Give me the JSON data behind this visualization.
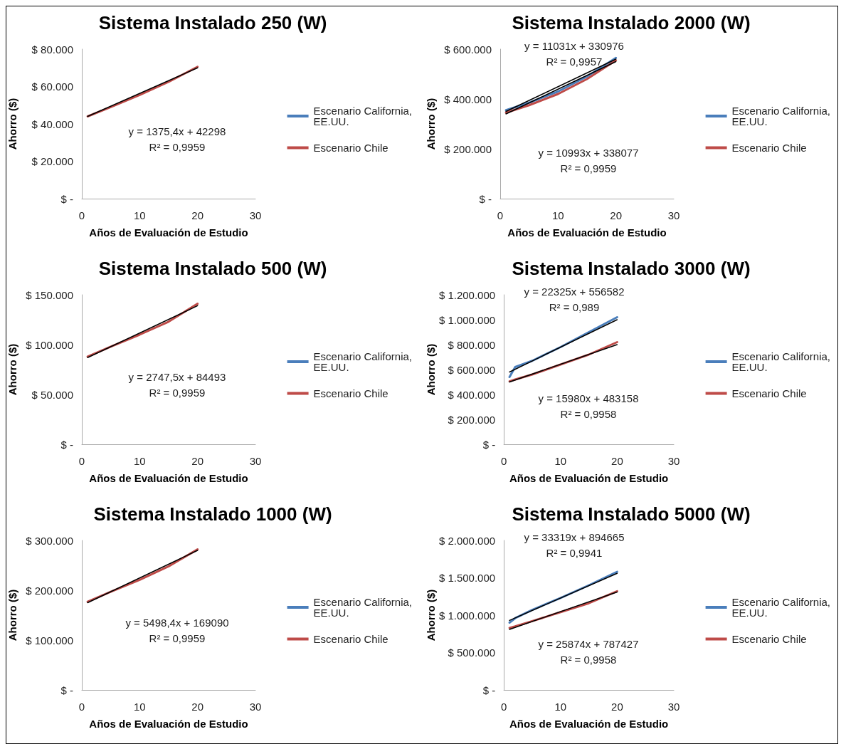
{
  "chart_data": [
    {
      "type": "line",
      "title": "Sistema Instalado 250 (W)",
      "xlabel": "Años de Evaluación de Estudio",
      "ylabel": "Ahorro ($)",
      "xlim": [
        0,
        30
      ],
      "xticks": [
        0,
        10,
        20,
        30
      ],
      "ylim": [
        0,
        80000
      ],
      "yticks": [
        {
          "value": 0,
          "label": "$ -"
        },
        {
          "value": 20000,
          "label": "$ 20.000"
        },
        {
          "value": 40000,
          "label": "$ 40.000"
        },
        {
          "value": 60000,
          "label": "$ 60.000"
        },
        {
          "value": 80000,
          "label": "$ 80.000"
        }
      ],
      "grid": false,
      "legend": "right",
      "marker": "none",
      "line_style": "solid",
      "series": [
        {
          "name": "Escenario California, EE.UU.",
          "color": "#4a7ebb"
        },
        {
          "name": "Escenario Chile",
          "color": "#be4b48",
          "x": [
            1,
            5,
            10,
            15,
            20
          ],
          "values": [
            44000,
            49000,
            55500,
            62500,
            70500
          ]
        },
        {
          "type": "line",
          "color": "#000000",
          "x": [
            1,
            20
          ],
          "values": [
            44000,
            70000
          ]
        }
      ],
      "annotations": [
        "y = 1375,4x + 42298",
        "R² = 0,9959"
      ]
    },
    {
      "type": "line",
      "title": "Sistema Instalado 2000 (W)",
      "xlabel": "Años de Evaluación de Estudio",
      "ylabel": "Ahorro ($)",
      "xlim": [
        0,
        30
      ],
      "xticks": [
        0,
        10,
        20,
        30
      ],
      "ylim": [
        0,
        600000
      ],
      "yticks": [
        {
          "value": 0,
          "label": "$ -"
        },
        {
          "value": 200000,
          "label": "$ 200.000"
        },
        {
          "value": 400000,
          "label": "$ 400.000"
        },
        {
          "value": 600000,
          "label": "$ 600.000"
        }
      ],
      "grid": false,
      "legend": "right",
      "marker": "none",
      "line_style": "solid",
      "series": [
        {
          "name": "Escenario California, EE.UU.",
          "color": "#4a7ebb",
          "x": [
            1,
            5,
            10,
            15,
            20
          ],
          "values": [
            355000,
            385000,
            430000,
            490000,
            565000
          ]
        },
        {
          "name": "Escenario Chile",
          "color": "#be4b48",
          "x": [
            1,
            5,
            10,
            15,
            20
          ],
          "values": [
            345000,
            375000,
            420000,
            480000,
            555000
          ]
        },
        {
          "type": "line",
          "color": "#000000",
          "x": [
            1,
            20
          ],
          "values": [
            340000,
            550000
          ]
        },
        {
          "type": "line",
          "color": "#000000",
          "x": [
            1,
            20
          ],
          "values": [
            350000,
            560000
          ]
        }
      ],
      "annotations": [
        "y = 11031x + 330976",
        "R² = 0,9957",
        "y = 10993x + 338077",
        "R² = 0,9959"
      ]
    },
    {
      "type": "line",
      "title": "Sistema Instalado 500 (W)",
      "xlabel": "Años de Evaluación de Estudio",
      "ylabel": "Ahorro ($)",
      "xlim": [
        0,
        30
      ],
      "xticks": [
        0,
        10,
        20,
        30
      ],
      "ylim": [
        0,
        150000
      ],
      "yticks": [
        {
          "value": 0,
          "label": "$ -"
        },
        {
          "value": 50000,
          "label": "$ 50.000"
        },
        {
          "value": 100000,
          "label": "$ 100.000"
        },
        {
          "value": 150000,
          "label": "$ 150.000"
        }
      ],
      "grid": false,
      "legend": "right",
      "marker": "none",
      "line_style": "solid",
      "series": [
        {
          "name": "Escenario California, EE.UU.",
          "color": "#4a7ebb"
        },
        {
          "name": "Escenario Chile",
          "color": "#be4b48",
          "x": [
            1,
            5,
            10,
            15,
            20
          ],
          "values": [
            88000,
            98000,
            110000,
            123000,
            141000
          ]
        },
        {
          "type": "line",
          "color": "#000000",
          "x": [
            1,
            20
          ],
          "values": [
            87000,
            139000
          ]
        }
      ],
      "annotations": [
        "y = 2747,5x + 84493",
        "R² = 0,9959"
      ]
    },
    {
      "type": "line",
      "title": "Sistema Instalado 3000 (W)",
      "xlabel": "Años de Evaluación de Estudio",
      "ylabel": "Ahorro ($)",
      "xlim": [
        0,
        30
      ],
      "xticks": [
        0,
        10,
        20,
        30
      ],
      "ylim": [
        0,
        1200000
      ],
      "yticks": [
        {
          "value": 0,
          "label": "$ -"
        },
        {
          "value": 200000,
          "label": "$ 200.000"
        },
        {
          "value": 400000,
          "label": "$ 400.000"
        },
        {
          "value": 600000,
          "label": "$ 600.000"
        },
        {
          "value": 800000,
          "label": "$ 800.000"
        },
        {
          "value": 1000000,
          "label": "$ 1.000.000"
        },
        {
          "value": 1200000,
          "label": "$ 1.200.000"
        }
      ],
      "grid": false,
      "legend": "right",
      "marker": "none",
      "line_style": "solid",
      "series": [
        {
          "name": "Escenario California, EE.UU.",
          "color": "#4a7ebb",
          "x": [
            1,
            2,
            5,
            10,
            15,
            20
          ],
          "values": [
            540000,
            620000,
            670000,
            780000,
            900000,
            1020000
          ]
        },
        {
          "name": "Escenario Chile",
          "color": "#be4b48",
          "x": [
            1,
            2,
            5,
            10,
            15,
            20
          ],
          "values": [
            505000,
            520000,
            560000,
            640000,
            720000,
            820000
          ]
        },
        {
          "type": "line",
          "color": "#000000",
          "x": [
            1,
            20
          ],
          "values": [
            580000,
            1000000
          ]
        },
        {
          "type": "line",
          "color": "#000000",
          "x": [
            1,
            20
          ],
          "values": [
            500000,
            800000
          ]
        }
      ],
      "annotations": [
        "y = 22325x + 556582",
        "R² = 0,989",
        "y = 15980x + 483158",
        "R² = 0,9958"
      ]
    },
    {
      "type": "line",
      "title": "Sistema Instalado 1000 (W)",
      "xlabel": "Años de Evaluación de Estudio",
      "ylabel": "Ahorro ($)",
      "xlim": [
        0,
        30
      ],
      "xticks": [
        0,
        10,
        20,
        30
      ],
      "ylim": [
        0,
        300000
      ],
      "yticks": [
        {
          "value": 0,
          "label": "$ -"
        },
        {
          "value": 100000,
          "label": "$ 100.000"
        },
        {
          "value": 200000,
          "label": "$ 200.000"
        },
        {
          "value": 300000,
          "label": "$ 300.000"
        }
      ],
      "grid": false,
      "legend": "right",
      "marker": "none",
      "line_style": "solid",
      "series": [
        {
          "name": "Escenario California, EE.UU.",
          "color": "#4a7ebb"
        },
        {
          "name": "Escenario Chile",
          "color": "#be4b48",
          "x": [
            1,
            5,
            10,
            15,
            20
          ],
          "values": [
            177000,
            197000,
            221000,
            248000,
            282000
          ]
        },
        {
          "type": "line",
          "color": "#000000",
          "x": [
            1,
            20
          ],
          "values": [
            175000,
            280000
          ]
        }
      ],
      "annotations": [
        "y = 5498,4x + 169090",
        "R² = 0,9959"
      ]
    },
    {
      "type": "line",
      "title": "Sistema Instalado 5000 (W)",
      "xlabel": "Años de Evaluación de Estudio",
      "ylabel": "Ahorro ($)",
      "xlim": [
        0,
        30
      ],
      "xticks": [
        0,
        10,
        20,
        30
      ],
      "ylim": [
        0,
        2000000
      ],
      "yticks": [
        {
          "value": 0,
          "label": "$ -"
        },
        {
          "value": 500000,
          "label": "$ 500.000"
        },
        {
          "value": 1000000,
          "label": "$ 1.000.000"
        },
        {
          "value": 1500000,
          "label": "$ 1.500.000"
        },
        {
          "value": 2000000,
          "label": "$ 2.000.000"
        }
      ],
      "grid": false,
      "legend": "right",
      "marker": "none",
      "line_style": "solid",
      "series": [
        {
          "name": "Escenario California, EE.UU.",
          "color": "#4a7ebb",
          "x": [
            1,
            2,
            5,
            10,
            15,
            20
          ],
          "values": [
            900000,
            960000,
            1070000,
            1230000,
            1400000,
            1580000
          ]
        },
        {
          "name": "Escenario Chile",
          "color": "#be4b48",
          "x": [
            1,
            2,
            5,
            10,
            15,
            20
          ],
          "values": [
            830000,
            850000,
            920000,
            1040000,
            1160000,
            1320000
          ]
        },
        {
          "type": "line",
          "color": "#000000",
          "x": [
            1,
            20
          ],
          "values": [
            930000,
            1560000
          ]
        },
        {
          "type": "line",
          "color": "#000000",
          "x": [
            1,
            20
          ],
          "values": [
            810000,
            1310000
          ]
        }
      ],
      "annotations": [
        "y = 33319x + 894665",
        "R² = 0,9941",
        "y = 25874x + 787427",
        "R² = 0,9958"
      ]
    }
  ]
}
